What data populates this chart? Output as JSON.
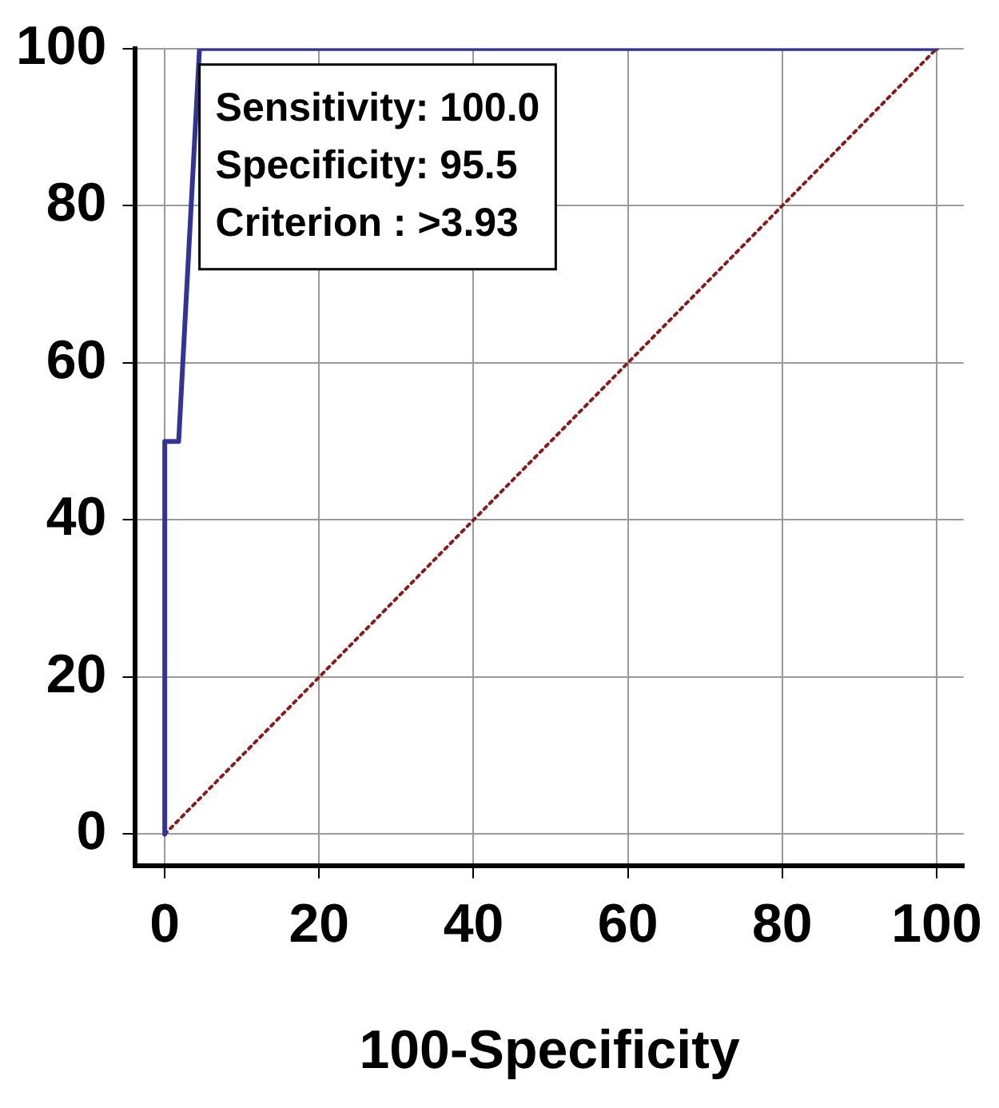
{
  "chart_data": {
    "type": "line",
    "xlabel": "100-Specificity",
    "xlim": [
      -3.8,
      103.5
    ],
    "ylim": [
      -4,
      100
    ],
    "xticks": [
      0,
      20,
      40,
      60,
      80,
      100
    ],
    "yticks": [
      0,
      20,
      40,
      60,
      80,
      100
    ],
    "grid": true,
    "legend": false,
    "marker": "none",
    "series": [
      {
        "color": "#33339a",
        "x": [
          0,
          0,
          1.8,
          4.5,
          100
        ],
        "values": [
          0,
          50,
          50,
          100,
          100
        ],
        "line_style": "solid"
      },
      {
        "color": "#8b1a1a",
        "x": [
          0,
          100
        ],
        "values": [
          0,
          100
        ],
        "line_style": "dotted"
      }
    ],
    "annotations": [
      "Sensitivity: 100.0",
      "Specificity: 95.5",
      "Criterion : >3.93"
    ]
  }
}
